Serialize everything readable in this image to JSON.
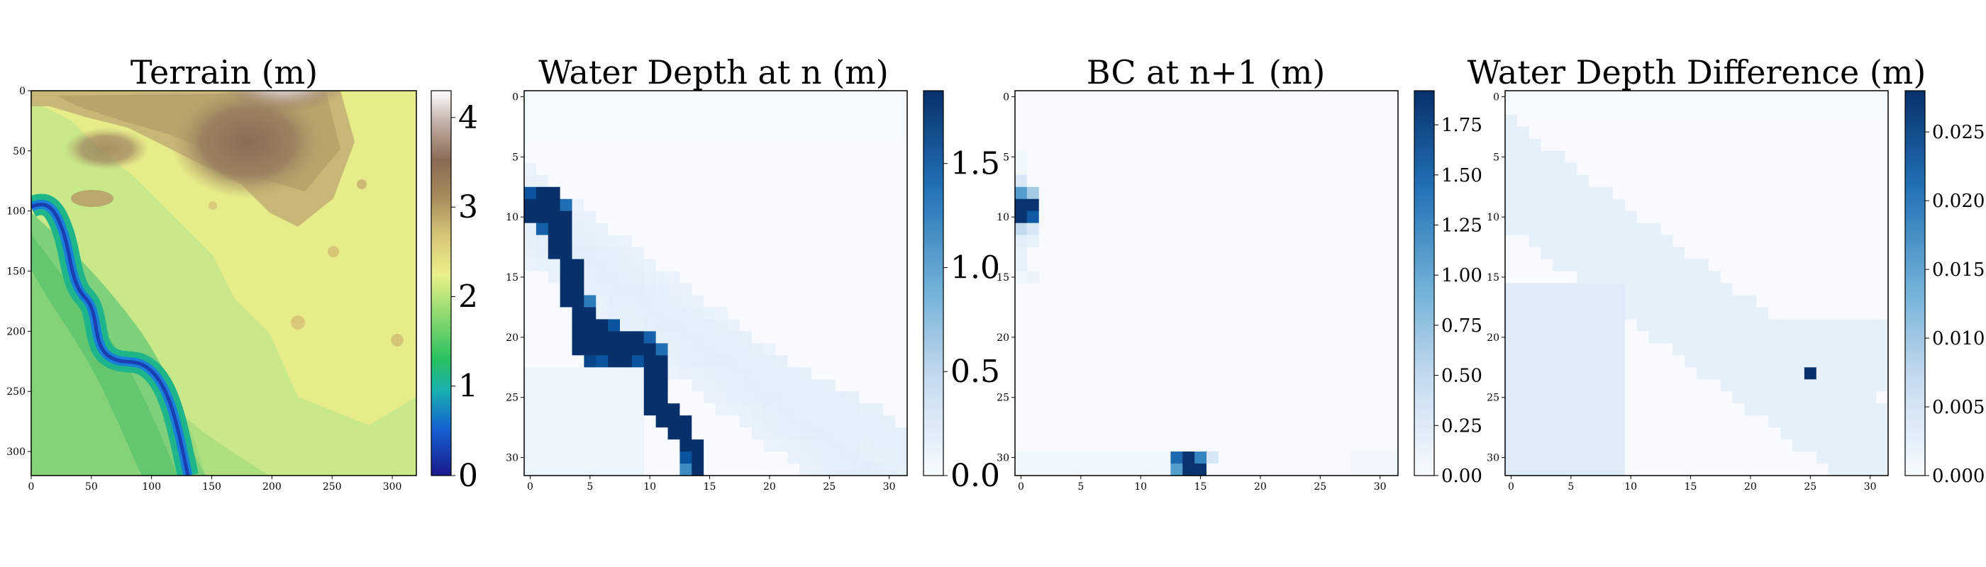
{
  "chart_data": [
    {
      "type": "heatmap",
      "title": "Terrain (m)",
      "colormap": "gist_earth",
      "x_ticks": [
        "0",
        "50",
        "100",
        "150",
        "200",
        "250",
        "300"
      ],
      "y_ticks": [
        "0",
        "50",
        "100",
        "150",
        "200",
        "250",
        "300"
      ],
      "xlim": [
        0,
        320
      ],
      "ylim": [
        0,
        320
      ],
      "colorbar_ticks": [
        "0",
        "1",
        "2",
        "3",
        "4"
      ],
      "colorbar_range": [
        0,
        4.3
      ],
      "features": [
        "river channel from left edge near y=90 winding to bottom near x=150",
        "elevated brown hills in upper center",
        "white peak at top center near x=220"
      ]
    },
    {
      "type": "heatmap",
      "title": "Water Depth at n (m)",
      "colormap": "Blues",
      "grid_size": [
        32,
        32
      ],
      "x_ticks": [
        "0",
        "5",
        "10",
        "15",
        "20",
        "25",
        "30"
      ],
      "y_ticks": [
        "0",
        "5",
        "10",
        "15",
        "20",
        "25",
        "30"
      ],
      "colorbar_ticks": [
        "0.0",
        "0.5",
        "1.0",
        "1.5"
      ],
      "colorbar_range": [
        0,
        1.85
      ],
      "channel_cells": [
        [
          8,
          0,
          1.6
        ],
        [
          8,
          1,
          1.85
        ],
        [
          8,
          2,
          1.85
        ],
        [
          9,
          0,
          1.85
        ],
        [
          9,
          1,
          1.85
        ],
        [
          9,
          2,
          1.85
        ],
        [
          9,
          3,
          1.4
        ],
        [
          10,
          0,
          1.85
        ],
        [
          10,
          1,
          1.85
        ],
        [
          10,
          2,
          1.85
        ],
        [
          10,
          3,
          1.85
        ],
        [
          11,
          1,
          1.5
        ],
        [
          11,
          2,
          1.85
        ],
        [
          11,
          3,
          1.85
        ],
        [
          12,
          2,
          1.85
        ],
        [
          12,
          3,
          1.85
        ],
        [
          13,
          2,
          1.85
        ],
        [
          13,
          3,
          1.85
        ],
        [
          14,
          3,
          1.85
        ],
        [
          14,
          4,
          1.85
        ],
        [
          15,
          3,
          1.85
        ],
        [
          15,
          4,
          1.85
        ],
        [
          16,
          3,
          1.85
        ],
        [
          16,
          4,
          1.85
        ],
        [
          17,
          3,
          1.85
        ],
        [
          17,
          4,
          1.85
        ],
        [
          17,
          5,
          1.3
        ],
        [
          18,
          4,
          1.85
        ],
        [
          18,
          5,
          1.85
        ],
        [
          19,
          4,
          1.85
        ],
        [
          19,
          5,
          1.85
        ],
        [
          19,
          6,
          1.85
        ],
        [
          19,
          7,
          1.6
        ],
        [
          20,
          4,
          1.85
        ],
        [
          20,
          5,
          1.85
        ],
        [
          20,
          6,
          1.85
        ],
        [
          20,
          7,
          1.85
        ],
        [
          20,
          8,
          1.85
        ],
        [
          20,
          9,
          1.85
        ],
        [
          20,
          10,
          1.5
        ],
        [
          21,
          4,
          1.85
        ],
        [
          21,
          5,
          1.85
        ],
        [
          21,
          6,
          1.85
        ],
        [
          21,
          7,
          1.85
        ],
        [
          21,
          8,
          1.85
        ],
        [
          21,
          9,
          1.85
        ],
        [
          21,
          10,
          1.85
        ],
        [
          21,
          11,
          1.4
        ],
        [
          22,
          5,
          1.7
        ],
        [
          22,
          6,
          1.6
        ],
        [
          22,
          7,
          1.85
        ],
        [
          22,
          8,
          1.85
        ],
        [
          22,
          9,
          1.6
        ],
        [
          22,
          10,
          1.85
        ],
        [
          22,
          11,
          1.85
        ],
        [
          23,
          10,
          1.85
        ],
        [
          23,
          11,
          1.85
        ],
        [
          24,
          10,
          1.85
        ],
        [
          24,
          11,
          1.85
        ],
        [
          25,
          10,
          1.85
        ],
        [
          25,
          11,
          1.85
        ],
        [
          26,
          10,
          1.85
        ],
        [
          26,
          11,
          1.85
        ],
        [
          26,
          12,
          1.85
        ],
        [
          27,
          11,
          1.85
        ],
        [
          27,
          12,
          1.85
        ],
        [
          27,
          13,
          1.85
        ],
        [
          28,
          12,
          1.85
        ],
        [
          28,
          13,
          1.85
        ],
        [
          29,
          13,
          1.85
        ],
        [
          29,
          14,
          1.85
        ],
        [
          30,
          13,
          1.6
        ],
        [
          30,
          14,
          1.85
        ],
        [
          31,
          13,
          1.2
        ],
        [
          31,
          14,
          1.85
        ]
      ]
    },
    {
      "type": "heatmap",
      "title": "BC at n+1 (m)",
      "colormap": "Blues",
      "grid_size": [
        32,
        32
      ],
      "x_ticks": [
        "0",
        "5",
        "10",
        "15",
        "20",
        "25",
        "30"
      ],
      "y_ticks": [
        "0",
        "5",
        "10",
        "15",
        "20",
        "25",
        "30"
      ],
      "colorbar_ticks": [
        "0.00",
        "0.25",
        "0.50",
        "0.75",
        "1.00",
        "1.25",
        "1.50",
        "1.75"
      ],
      "colorbar_range": [
        0,
        1.92
      ],
      "cells": [
        [
          7,
          0,
          0.3
        ],
        [
          8,
          0,
          1.1
        ],
        [
          8,
          1,
          0.7
        ],
        [
          9,
          0,
          1.9
        ],
        [
          9,
          1,
          1.9
        ],
        [
          10,
          0,
          1.9
        ],
        [
          10,
          1,
          1.6
        ],
        [
          11,
          0,
          0.5
        ],
        [
          11,
          1,
          0.3
        ],
        [
          12,
          0,
          0.2
        ],
        [
          12,
          1,
          0.15
        ],
        [
          13,
          0,
          0.15
        ],
        [
          14,
          0,
          0.15
        ],
        [
          15,
          1,
          0.12
        ],
        [
          30,
          13,
          1.5
        ],
        [
          30,
          14,
          1.9
        ],
        [
          30,
          15,
          1.3
        ],
        [
          30,
          16,
          0.3
        ],
        [
          31,
          13,
          1.1
        ],
        [
          31,
          14,
          1.9
        ],
        [
          31,
          15,
          1.9
        ]
      ]
    },
    {
      "type": "heatmap",
      "title": "Water Depth Difference (m)",
      "colormap": "Blues",
      "grid_size": [
        32,
        32
      ],
      "x_ticks": [
        "0",
        "5",
        "10",
        "15",
        "20",
        "25",
        "30"
      ],
      "y_ticks": [
        "0",
        "5",
        "10",
        "15",
        "20",
        "25",
        "30"
      ],
      "colorbar_ticks": [
        "0.000",
        "0.005",
        "0.010",
        "0.015",
        "0.020",
        "0.025"
      ],
      "colorbar_range": [
        0,
        0.028
      ],
      "hot_cell": [
        23,
        25,
        0.028
      ]
    }
  ]
}
